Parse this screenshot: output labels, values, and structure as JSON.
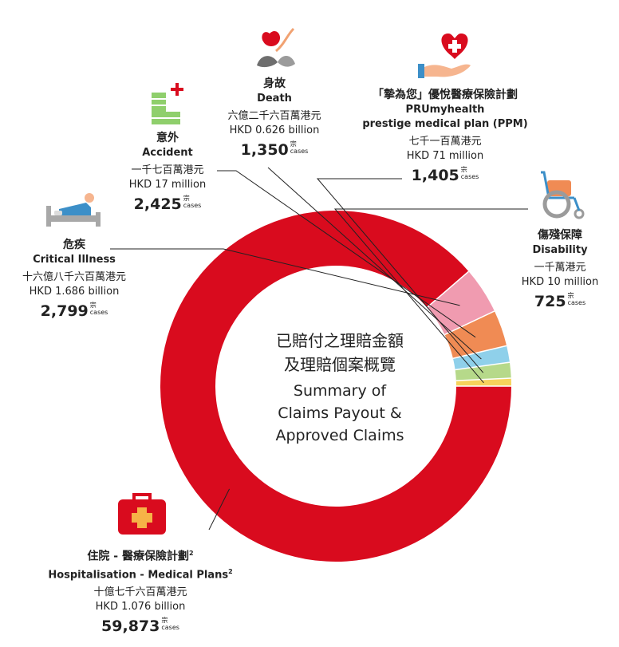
{
  "chart_data": {
    "type": "pie",
    "variant": "donut",
    "title_zh": "已賠付之理賠金額 及理賠個案概覽",
    "title_en_lines": [
      "Summary of",
      "Claims Payout &",
      "Approved Claims"
    ],
    "title_zh_lines": [
      "已賠付之理賠金額",
      "及理賠個案概覽"
    ],
    "unit": "HKD million",
    "categories": [
      {
        "key": "hospitalisation",
        "zh": "住院 - 醫療保險計劃",
        "zh_sup": "2",
        "en": "Hospitalisation - Medical Plans",
        "en_sup": "2",
        "amount_zh": "十億七千六百萬港元",
        "amount_en": "HKD 1.076 billion",
        "value": 1076,
        "cases": "59,873",
        "color": "#d90b1e"
      },
      {
        "key": "critical",
        "zh": "危疾",
        "en": "Critical Illness",
        "amount_zh": "十六億八千六百萬港元",
        "amount_en": "HKD 1.686 billion",
        "value": 1686,
        "cases": "2,799",
        "color": "#f09bb0"
      },
      {
        "key": "accident",
        "zh": "意外",
        "en": "Accident",
        "amount_zh": "一千七百萬港元",
        "amount_en": "HKD 17 million",
        "value": 17,
        "cases": "2,425",
        "color": "#f08b54"
      },
      {
        "key": "death",
        "zh": "身故",
        "en": "Death",
        "amount_zh": "六億二千六百萬港元",
        "amount_en": "HKD 0.626 billion",
        "value": 626,
        "cases": "1,350",
        "color": "#8fd0ea"
      },
      {
        "key": "ppm",
        "zh": "「摯為您」優悅醫療保險計劃",
        "en_lines": [
          "PRUmyhealth",
          "prestige medical plan (PPM)"
        ],
        "amount_zh": "七千一百萬港元",
        "amount_en": "HKD 71 million",
        "value": 71,
        "cases": "1,405",
        "color": "#b6d98a"
      },
      {
        "key": "disability",
        "zh": "傷殘保障",
        "en": "Disability",
        "amount_zh": "一千萬港元",
        "amount_en": "HKD 10 million",
        "value": 10,
        "cases": "725",
        "color": "#f6d35c"
      }
    ],
    "cases_unit_zh": "宗",
    "cases_unit_en": "cases"
  }
}
